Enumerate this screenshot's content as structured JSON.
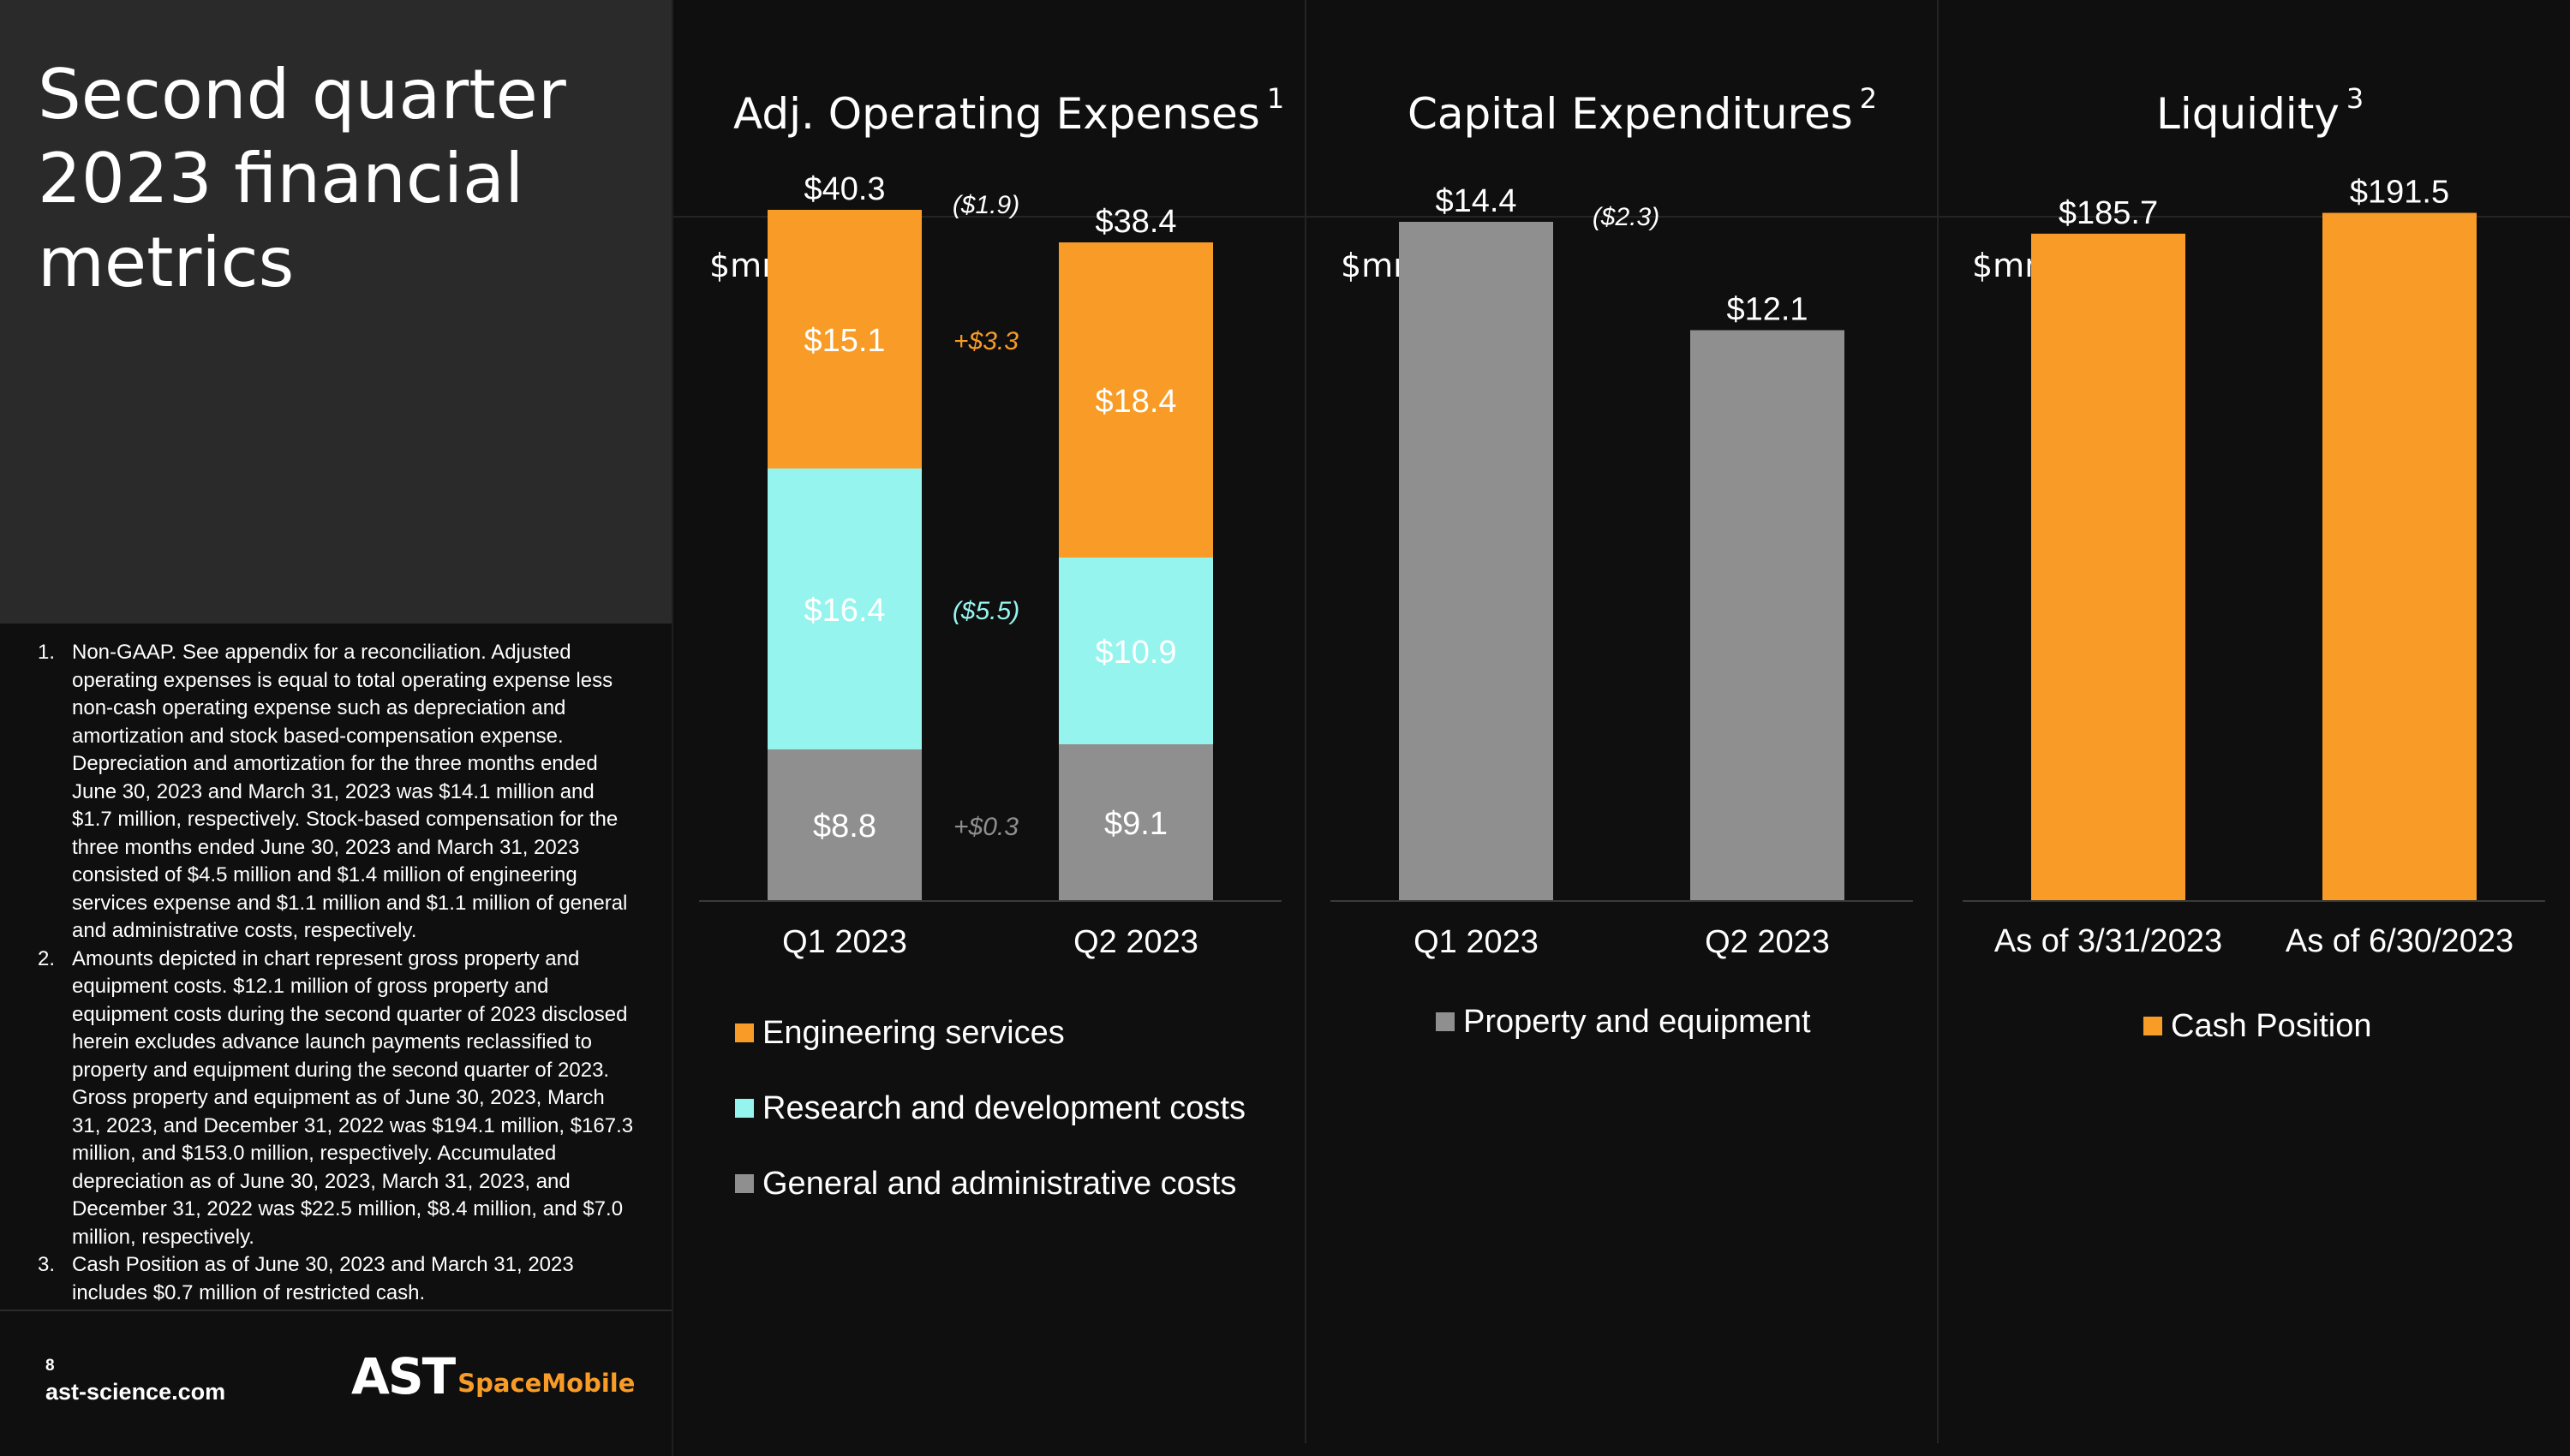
{
  "title": "Second quarter 2023 financial metrics",
  "footnotes": [
    {
      "num": "1.",
      "text": "Non-GAAP. See appendix for a reconciliation. Adjusted operating expenses is equal to total operating expense less non-cash operating expense such as depreciation and amortization and stock based-compensation expense. Depreciation and amortization for the three months ended June 30, 2023 and March 31, 2023 was $14.1 million and $1.7 million, respectively. Stock-based compensation for the three months ended June 30, 2023 and March 31, 2023 consisted of $4.5 million and $1.4 million of engineering services expense and $1.1 million and $1.1 million of general and administrative costs, respectively."
    },
    {
      "num": "2.",
      "text": "Amounts depicted in chart represent gross property and equipment costs. $12.1 million of gross property and equipment costs during the second quarter of 2023 disclosed herein excludes advance launch payments reclassified to property and equipment during the second quarter of 2023. Gross property and equipment as of June 30, 2023, March 31, 2023, and December 31, 2022 was $194.1 million, $167.3 million, and $153.0 million, respectively. Accumulated depreciation as of June 30, 2023, March 31, 2023, and December 31, 2022 was $22.5 million, $8.4 million, and $7.0 million, respectively."
    },
    {
      "num": "3.",
      "text": "Cash Position as of June 30, 2023 and March 31, 2023 includes $0.7 million of restricted cash."
    }
  ],
  "footer": {
    "page_number": "8",
    "website": "ast-science.com",
    "logo_main": "AST",
    "logo_sub": "SpaceMobile"
  },
  "colors": {
    "engineering": "#f89c27",
    "research": "#96f4ef",
    "general": "#8f8f8f",
    "cash": "#f89c27",
    "property": "#8f8f8f"
  },
  "chart_data": [
    {
      "type": "bar",
      "stacked": true,
      "title": "Adj. Operating Expenses",
      "footnote_ref": "1",
      "unit": "$mm",
      "categories": [
        "Q1 2023",
        "Q2 2023"
      ],
      "series": [
        {
          "name": "General and administrative costs",
          "values": [
            8.8,
            9.1
          ],
          "labels": [
            "$8.8",
            "$9.1"
          ],
          "color": "#8f8f8f"
        },
        {
          "name": "Research and development costs",
          "values": [
            16.4,
            10.9
          ],
          "labels": [
            "$16.4",
            "$10.9"
          ],
          "color": "#96f4ef"
        },
        {
          "name": "Engineering services",
          "values": [
            15.1,
            18.4
          ],
          "labels": [
            "$15.1",
            "$18.4"
          ],
          "color": "#f89c27"
        }
      ],
      "totals": [
        40.3,
        38.4
      ],
      "total_labels": [
        "$40.3",
        "$38.4"
      ],
      "changes": [
        {
          "label": "($1.9)",
          "ref": "total",
          "color": "#ffffff"
        },
        {
          "label": "+$3.3",
          "ref": "Engineering services",
          "color": "#f89c27"
        },
        {
          "label": "($5.5)",
          "ref": "Research and development costs",
          "color": "#96f4ef"
        },
        {
          "label": "+$0.3",
          "ref": "General and administrative costs",
          "color": "#8f8f8f"
        }
      ],
      "ylim": [
        0,
        44
      ],
      "legend_order": [
        "Engineering services",
        "Research and development costs",
        "General and administrative costs"
      ],
      "legend_position": "bottom"
    },
    {
      "type": "bar",
      "stacked": false,
      "title": "Capital Expenditures",
      "footnote_ref": "2",
      "unit": "$mm",
      "categories": [
        "Q1 2023",
        "Q2 2023"
      ],
      "series": [
        {
          "name": "Property and equipment",
          "values": [
            14.4,
            12.1
          ],
          "labels": [
            "$14.4",
            "$12.1"
          ],
          "color": "#8f8f8f"
        }
      ],
      "changes": [
        {
          "label": "($2.3)",
          "ref": "total",
          "color": "#ffffff"
        }
      ],
      "ylim": [
        0,
        16
      ],
      "legend_order": [
        "Property and equipment"
      ],
      "legend_position": "bottom"
    },
    {
      "type": "bar",
      "stacked": false,
      "title": "Liquidity",
      "footnote_ref": "3",
      "unit": "$mm",
      "categories": [
        "As of 3/31/2023",
        "As of 6/30/2023"
      ],
      "series": [
        {
          "name": "Cash Position",
          "values": [
            185.7,
            191.5
          ],
          "labels": [
            "$185.7",
            "$191.5"
          ],
          "color": "#f89c27"
        }
      ],
      "changes": [],
      "ylim": [
        0,
        210
      ],
      "legend_order": [
        "Cash Position"
      ],
      "legend_position": "bottom"
    }
  ]
}
